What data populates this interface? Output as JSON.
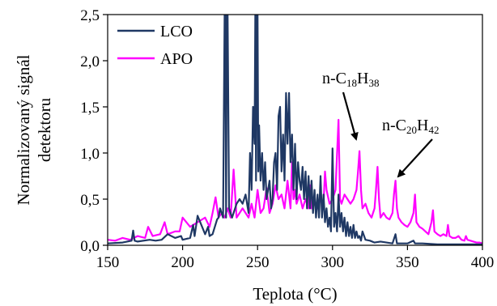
{
  "chart_data": {
    "type": "line",
    "title": "",
    "xlabel": "Teplota (°C)",
    "ylabel_lines": [
      "Normalizovaný signál",
      "detektoru"
    ],
    "xlim": [
      150,
      400
    ],
    "ylim": [
      0,
      2.5
    ],
    "xticks": [
      150,
      200,
      250,
      300,
      350,
      400
    ],
    "yticks": [
      0,
      0.5,
      1.0,
      1.5,
      2.0,
      2.5
    ],
    "xtick_labels": [
      "150",
      "200",
      "250",
      "300",
      "350",
      "400"
    ],
    "ytick_labels": [
      "0,0",
      "0,5",
      "1,0",
      "1,5",
      "2,0",
      "2,5"
    ],
    "grid": false,
    "legend_position": "top-left",
    "series": [
      {
        "name": "LCO",
        "color": "#1f3864",
        "x": [
          150,
          160,
          166,
          167,
          168,
          170,
          178,
          182,
          186,
          190,
          195,
          199,
          200,
          205,
          207,
          208,
          210,
          215,
          217,
          218,
          220,
          223,
          224,
          225,
          227,
          228,
          228.5,
          229,
          229.5,
          230,
          231,
          233,
          236,
          238,
          240,
          242,
          244,
          245,
          246,
          247,
          248,
          248.5,
          249,
          249.5,
          250,
          250.5,
          251,
          252,
          253,
          254,
          255,
          256,
          257,
          258,
          259,
          260,
          261,
          262,
          263,
          264,
          265,
          266,
          267,
          268,
          269,
          270,
          271,
          272,
          273,
          274,
          275,
          276,
          277,
          278,
          279,
          280,
          281,
          282,
          283,
          284,
          285,
          286,
          287,
          288,
          289,
          290,
          291,
          292,
          293,
          294,
          295,
          296,
          297,
          298,
          299,
          300,
          301,
          302,
          303,
          304,
          305,
          306,
          307,
          308,
          309,
          310,
          311,
          312,
          313,
          314,
          315,
          316,
          317,
          318,
          319,
          320,
          322,
          325,
          328,
          332,
          336,
          340,
          342,
          343,
          345,
          350,
          354,
          355,
          360,
          370,
          380,
          390,
          400
        ],
        "y": [
          0.02,
          0.03,
          0.05,
          0.16,
          0.05,
          0.04,
          0.06,
          0.05,
          0.06,
          0.12,
          0.08,
          0.1,
          0.06,
          0.08,
          0.22,
          0.1,
          0.32,
          0.12,
          0.2,
          0.1,
          0.12,
          0.28,
          0.3,
          0.4,
          0.3,
          2.5,
          2.5,
          0.3,
          2.5,
          2.5,
          0.4,
          0.3,
          0.45,
          0.5,
          0.45,
          0.55,
          0.35,
          1.0,
          0.6,
          1.5,
          1.1,
          2.5,
          0.7,
          2.5,
          2.5,
          0.8,
          1.3,
          0.7,
          1.0,
          0.6,
          0.9,
          0.5,
          0.6,
          0.7,
          0.4,
          0.5,
          0.9,
          1.0,
          0.6,
          1.4,
          1.5,
          0.8,
          1.2,
          0.7,
          1.65,
          1.1,
          1.65,
          0.9,
          1.2,
          0.6,
          1.1,
          0.5,
          0.9,
          0.7,
          0.6,
          0.85,
          0.5,
          0.8,
          0.4,
          0.75,
          0.4,
          0.7,
          0.35,
          0.6,
          0.3,
          0.55,
          0.3,
          0.75,
          0.3,
          0.55,
          0.25,
          0.4,
          0.2,
          0.3,
          0.15,
          1.05,
          0.2,
          0.35,
          0.15,
          0.55,
          0.2,
          0.35,
          0.15,
          0.3,
          0.1,
          0.25,
          0.1,
          0.2,
          0.08,
          0.22,
          0.08,
          0.15,
          0.08,
          0.1,
          0.05,
          0.15,
          0.06,
          0.05,
          0.03,
          0.04,
          0.03,
          0.02,
          0.12,
          0.02,
          0.02,
          0.02,
          0.05,
          0.02,
          0.02,
          0.01,
          0.01,
          0.01,
          0.01
        ]
      },
      {
        "name": "APO",
        "color": "#ff00ff",
        "x": [
          150,
          155,
          160,
          165,
          170,
          175,
          177,
          180,
          185,
          188,
          190,
          195,
          198,
          200,
          205,
          210,
          215,
          218,
          220,
          222,
          224,
          226,
          228,
          230,
          232,
          234,
          236,
          238,
          240,
          242,
          244,
          246,
          248,
          250,
          252,
          254,
          256,
          258,
          260,
          262,
          264,
          266,
          268,
          270,
          272,
          273,
          274,
          275,
          276,
          278,
          280,
          282,
          284,
          285,
          286,
          288,
          290,
          292,
          294,
          295,
          296,
          298,
          300,
          302,
          304,
          305,
          306,
          308,
          310,
          312,
          314,
          316,
          317,
          318,
          319,
          320,
          322,
          324,
          326,
          328,
          329,
          330,
          331,
          332,
          334,
          336,
          338,
          340,
          341,
          342,
          343,
          344,
          346,
          348,
          350,
          352,
          354,
          355,
          356,
          358,
          360,
          362,
          364,
          366,
          367,
          368,
          370,
          372,
          374,
          376,
          377,
          378,
          380,
          382,
          384,
          386,
          388,
          389,
          390,
          392,
          394,
          396,
          398,
          400
        ],
        "y": [
          0.06,
          0.05,
          0.08,
          0.06,
          0.1,
          0.08,
          0.2,
          0.1,
          0.12,
          0.25,
          0.12,
          0.15,
          0.15,
          0.3,
          0.2,
          0.25,
          0.3,
          0.2,
          0.35,
          0.52,
          0.3,
          0.35,
          0.3,
          0.4,
          0.3,
          0.82,
          0.3,
          0.35,
          0.4,
          0.35,
          0.3,
          0.45,
          0.3,
          0.6,
          0.35,
          0.4,
          0.62,
          0.35,
          0.45,
          0.65,
          0.5,
          0.55,
          0.4,
          0.7,
          0.4,
          0.9,
          0.5,
          0.6,
          0.45,
          0.55,
          0.4,
          0.5,
          0.4,
          0.65,
          0.4,
          0.45,
          0.4,
          0.5,
          0.45,
          0.8,
          0.6,
          0.45,
          0.5,
          0.6,
          1.36,
          0.5,
          0.45,
          0.55,
          0.5,
          0.45,
          0.5,
          0.6,
          0.8,
          1.02,
          0.6,
          0.4,
          0.45,
          0.35,
          0.3,
          0.4,
          0.6,
          0.85,
          0.5,
          0.3,
          0.35,
          0.3,
          0.28,
          0.35,
          0.55,
          0.7,
          0.4,
          0.3,
          0.25,
          0.22,
          0.2,
          0.25,
          0.35,
          0.55,
          0.25,
          0.2,
          0.18,
          0.15,
          0.12,
          0.25,
          0.38,
          0.15,
          0.12,
          0.1,
          0.12,
          0.1,
          0.22,
          0.1,
          0.08,
          0.08,
          0.1,
          0.06,
          0.05,
          0.1,
          0.06,
          0.05,
          0.04,
          0.03,
          0.03,
          0.02
        ]
      }
    ],
    "annotations": [
      {
        "base": "n-C",
        "sub1": "18",
        "mid": "H",
        "sub2": "38",
        "target_x": 318,
        "target_y": 1.02
      },
      {
        "base": "n-C",
        "sub1": "20",
        "mid": "H",
        "sub2": "42",
        "target_x": 342,
        "target_y": 0.72
      }
    ]
  }
}
